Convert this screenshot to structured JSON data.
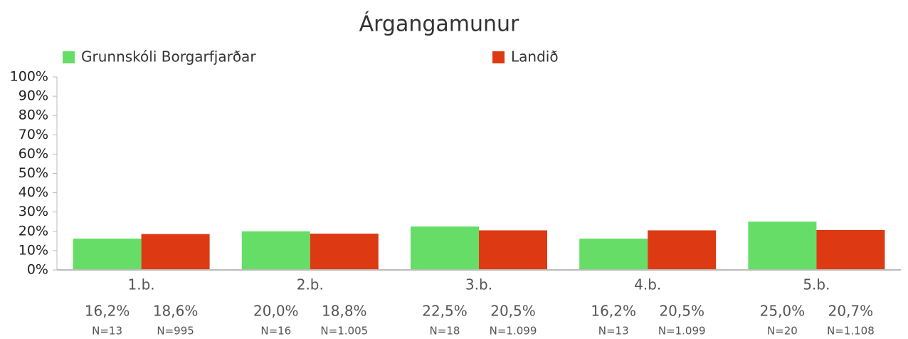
{
  "chart_data": {
    "type": "bar",
    "title": "Árgangamunur",
    "categories": [
      "1.b.",
      "2.b.",
      "3.b.",
      "4.b.",
      "5.b."
    ],
    "series": [
      {
        "name": "Grunnskóli Borgarfjarðar",
        "color": "#66dd66",
        "values": [
          16.2,
          20.0,
          22.5,
          16.2,
          25.0
        ],
        "value_labels": [
          "16,2%",
          "20,0%",
          "22,5%",
          "16,2%",
          "25,0%"
        ],
        "n_labels": [
          "N=13",
          "N=16",
          "N=18",
          "N=13",
          "N=20"
        ]
      },
      {
        "name": "Landið",
        "color": "#dd3a14",
        "values": [
          18.6,
          18.8,
          20.5,
          20.5,
          20.7
        ],
        "value_labels": [
          "18,6%",
          "18,8%",
          "20,5%",
          "20,5%",
          "20,7%"
        ],
        "n_labels": [
          "N=995",
          "N=1.005",
          "N=1.099",
          "N=1.099",
          "N=1.108"
        ]
      }
    ],
    "ylim": [
      0,
      100
    ],
    "yticks": [
      {
        "value": 0,
        "label": "0%"
      },
      {
        "value": 10,
        "label": "10%"
      },
      {
        "value": 20,
        "label": "20%"
      },
      {
        "value": 30,
        "label": "30%"
      },
      {
        "value": 40,
        "label": "40%"
      },
      {
        "value": 50,
        "label": "50%"
      },
      {
        "value": 60,
        "label": "60%"
      },
      {
        "value": 70,
        "label": "70%"
      },
      {
        "value": 80,
        "label": "80%"
      },
      {
        "value": 90,
        "label": "90%"
      },
      {
        "value": 100,
        "label": "100%"
      }
    ],
    "grid": false
  }
}
